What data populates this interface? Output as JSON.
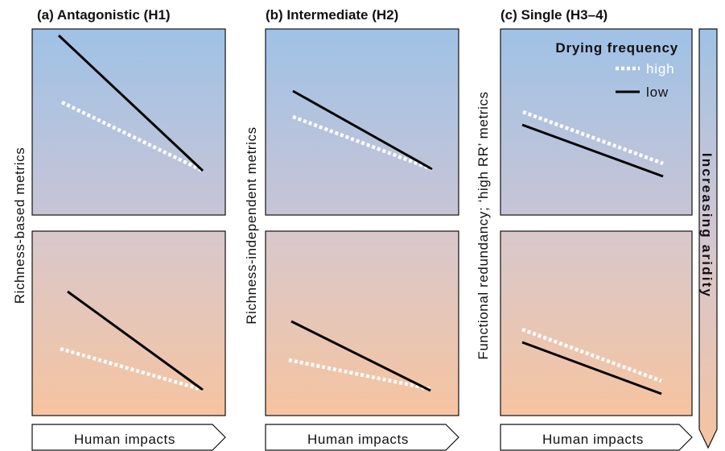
{
  "panels": [
    {
      "title": "(a) Antagonistic (H1)"
    },
    {
      "title": "(b) Intermediate (H2)"
    },
    {
      "title": "(c) Single (H3–4)"
    }
  ],
  "y_labels": [
    "Richness-based metrics",
    "Richness-independent metrics",
    "Functional redundancy; ‘high RR’ metrics"
  ],
  "x_arrow_label": "Human impacts",
  "aridity_label": "Increasing aridity",
  "legend": {
    "title": "Drying frequency",
    "high_label": "high",
    "low_label": "low"
  },
  "colors": {
    "top_gradient_start": "#9fc2e6",
    "top_gradient_end": "#c8c4d6",
    "bottom_gradient_start": "#d8c8cc",
    "bottom_gradient_end": "#f6c4a0",
    "high_line": "#ffffff",
    "low_line": "#000000"
  }
}
